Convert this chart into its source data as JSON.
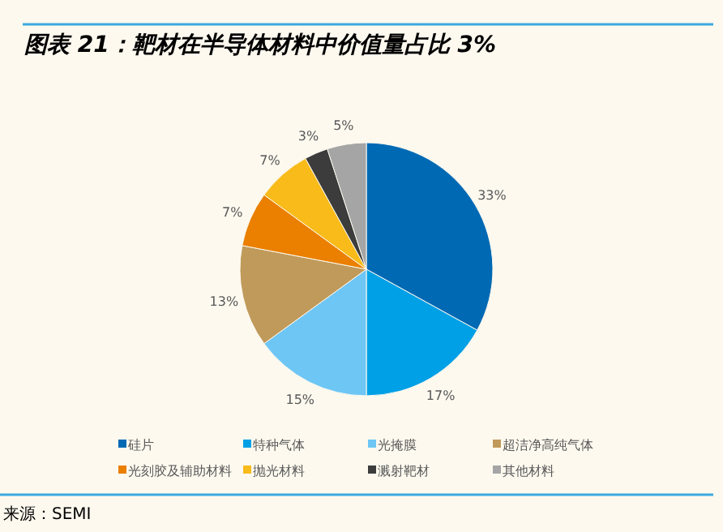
{
  "chart_data": {
    "type": "pie",
    "title": "图表 21：靶材在半导体材料中价值量占比 3%",
    "categories": [
      "硅片",
      "特种气体",
      "光掩膜",
      "超洁净高纯气体",
      "光刻胶及辅助材料",
      "抛光材料",
      "溅射靶材",
      "其他材料"
    ],
    "values": [
      33,
      17,
      15,
      13,
      7,
      7,
      3,
      5
    ],
    "value_labels": [
      "33%",
      "17%",
      "15%",
      "13%",
      "7%",
      "7%",
      "3%",
      "5%"
    ],
    "colors": [
      "#0069b4",
      "#00a0e6",
      "#6ec6f5",
      "#c09a5a",
      "#ea7f00",
      "#f8bb1a",
      "#3c3c3c",
      "#a5a5a5"
    ],
    "legend": "bottom",
    "annotations": [
      "来源：SEMI"
    ]
  }
}
